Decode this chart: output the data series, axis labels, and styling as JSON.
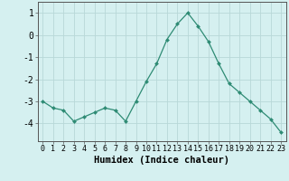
{
  "x": [
    0,
    1,
    2,
    3,
    4,
    5,
    6,
    7,
    8,
    9,
    10,
    11,
    12,
    13,
    14,
    15,
    16,
    17,
    18,
    19,
    20,
    21,
    22,
    23
  ],
  "y": [
    -3.0,
    -3.3,
    -3.4,
    -3.9,
    -3.7,
    -3.5,
    -3.3,
    -3.4,
    -3.9,
    -3.0,
    -2.1,
    -1.3,
    -0.2,
    0.5,
    1.0,
    0.4,
    -0.3,
    -1.3,
    -2.2,
    -2.6,
    -3.0,
    -3.4,
    -3.8,
    -4.4
  ],
  "line_color": "#2e8b74",
  "marker": "D",
  "marker_size": 2.0,
  "bg_color": "#d5f0f0",
  "grid_color": "#b8d8d8",
  "xlabel": "Humidex (Indice chaleur)",
  "ylim": [
    -4.8,
    1.5
  ],
  "xlim": [
    -0.5,
    23.5
  ],
  "yticks": [
    1,
    0,
    -1,
    -2,
    -3,
    -4
  ],
  "xtick_labels": [
    "0",
    "1",
    "2",
    "3",
    "4",
    "5",
    "6",
    "7",
    "8",
    "9",
    "10",
    "11",
    "12",
    "13",
    "14",
    "15",
    "16",
    "17",
    "18",
    "19",
    "20",
    "21",
    "22",
    "23"
  ],
  "xlabel_fontsize": 7.5,
  "ytick_fontsize": 7,
  "xtick_fontsize": 6.0
}
